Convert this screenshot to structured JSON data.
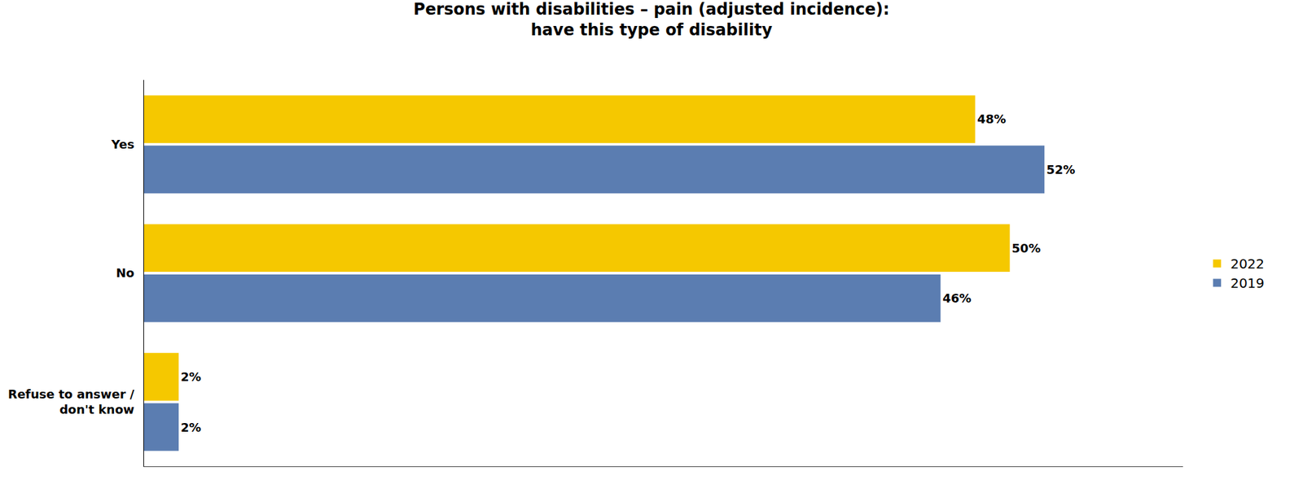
{
  "chart_data": {
    "type": "bar",
    "orientation": "horizontal",
    "title": "Persons with disabilities – pain (adjusted incidence):\nhave this type of disability",
    "categories": [
      "Yes",
      "No",
      "Refuse to answer /\ndon't know"
    ],
    "series": [
      {
        "name": "2022",
        "color": "#F5C800",
        "values": [
          48,
          50,
          2
        ],
        "value_labels": [
          "48%",
          "50%",
          "2%"
        ]
      },
      {
        "name": "2019",
        "color": "#5B7DB1",
        "values": [
          52,
          46,
          2
        ],
        "value_labels": [
          "52%",
          "46%",
          "2%"
        ]
      }
    ],
    "xlim": [
      0,
      60
    ],
    "grid": false,
    "legend": "right",
    "data_labels": true,
    "tick_labels": "y"
  }
}
